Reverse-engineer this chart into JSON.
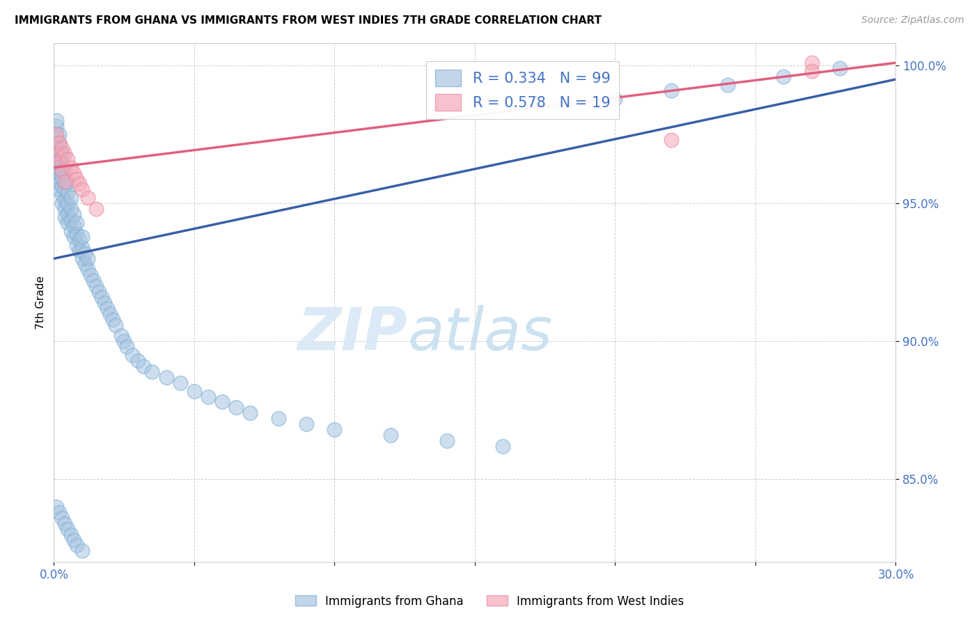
{
  "title": "IMMIGRANTS FROM GHANA VS IMMIGRANTS FROM WEST INDIES 7TH GRADE CORRELATION CHART",
  "source_text": "Source: ZipAtlas.com",
  "ylabel": "7th Grade",
  "xlim": [
    0.0,
    0.3
  ],
  "ylim": [
    0.82,
    1.008
  ],
  "xticks": [
    0.0,
    0.05,
    0.1,
    0.15,
    0.2,
    0.25,
    0.3
  ],
  "xticklabels": [
    "0.0%",
    "",
    "",
    "",
    "",
    "",
    "30.0%"
  ],
  "yticks": [
    0.85,
    0.9,
    0.95,
    1.0
  ],
  "yticklabels": [
    "85.0%",
    "90.0%",
    "95.0%",
    "100.0%"
  ],
  "ghana_color": "#a8c4e0",
  "ghana_edge_color": "#7aafd4",
  "westindies_color": "#f4a8b8",
  "westindies_edge_color": "#e888a0",
  "ghana_line_color": "#3a5fa8",
  "westindies_line_color": "#e06080",
  "ghana_R": 0.334,
  "ghana_N": 99,
  "westindies_R": 0.578,
  "westindies_N": 19,
  "watermark_zip": "ZIP",
  "watermark_atlas": "atlas",
  "background_color": "#ffffff",
  "ghana_line_x0": 0.0,
  "ghana_line_y0": 0.93,
  "ghana_line_x1": 0.3,
  "ghana_line_y1": 0.995,
  "wi_line_x0": 0.0,
  "wi_line_y0": 0.963,
  "wi_line_x1": 0.3,
  "wi_line_y1": 1.001,
  "ghana_x": [
    0.001,
    0.001,
    0.001,
    0.001,
    0.001,
    0.001,
    0.001,
    0.001,
    0.001,
    0.002,
    0.002,
    0.002,
    0.002,
    0.002,
    0.002,
    0.002,
    0.002,
    0.003,
    0.003,
    0.003,
    0.003,
    0.003,
    0.003,
    0.003,
    0.004,
    0.004,
    0.004,
    0.004,
    0.004,
    0.004,
    0.005,
    0.005,
    0.005,
    0.005,
    0.005,
    0.006,
    0.006,
    0.006,
    0.006,
    0.007,
    0.007,
    0.007,
    0.008,
    0.008,
    0.008,
    0.009,
    0.009,
    0.01,
    0.01,
    0.01,
    0.011,
    0.011,
    0.012,
    0.012,
    0.013,
    0.014,
    0.015,
    0.016,
    0.017,
    0.018,
    0.019,
    0.02,
    0.021,
    0.022,
    0.024,
    0.025,
    0.026,
    0.028,
    0.03,
    0.032,
    0.035,
    0.04,
    0.045,
    0.05,
    0.055,
    0.06,
    0.065,
    0.07,
    0.08,
    0.09,
    0.1,
    0.12,
    0.14,
    0.16,
    0.18,
    0.2,
    0.22,
    0.24,
    0.26,
    0.28,
    0.001,
    0.002,
    0.003,
    0.004,
    0.005,
    0.006,
    0.007,
    0.008,
    0.01
  ],
  "ghana_y": [
    0.96,
    0.963,
    0.965,
    0.967,
    0.97,
    0.972,
    0.975,
    0.978,
    0.98,
    0.955,
    0.958,
    0.961,
    0.963,
    0.966,
    0.969,
    0.972,
    0.975,
    0.95,
    0.953,
    0.956,
    0.959,
    0.962,
    0.965,
    0.968,
    0.945,
    0.948,
    0.951,
    0.955,
    0.958,
    0.962,
    0.943,
    0.946,
    0.95,
    0.954,
    0.958,
    0.94,
    0.944,
    0.948,
    0.952,
    0.938,
    0.942,
    0.946,
    0.935,
    0.939,
    0.943,
    0.933,
    0.937,
    0.93,
    0.934,
    0.938,
    0.928,
    0.932,
    0.926,
    0.93,
    0.924,
    0.922,
    0.92,
    0.918,
    0.916,
    0.914,
    0.912,
    0.91,
    0.908,
    0.906,
    0.902,
    0.9,
    0.898,
    0.895,
    0.893,
    0.891,
    0.889,
    0.887,
    0.885,
    0.882,
    0.88,
    0.878,
    0.876,
    0.874,
    0.872,
    0.87,
    0.868,
    0.866,
    0.864,
    0.862,
    0.985,
    0.988,
    0.991,
    0.993,
    0.996,
    0.999,
    0.84,
    0.838,
    0.836,
    0.834,
    0.832,
    0.83,
    0.828,
    0.826,
    0.824
  ],
  "wi_x": [
    0.001,
    0.001,
    0.002,
    0.002,
    0.003,
    0.003,
    0.004,
    0.004,
    0.005,
    0.006,
    0.007,
    0.008,
    0.009,
    0.01,
    0.012,
    0.015,
    0.22,
    0.27,
    0.27
  ],
  "wi_y": [
    0.975,
    0.968,
    0.972,
    0.965,
    0.97,
    0.962,
    0.968,
    0.958,
    0.966,
    0.963,
    0.961,
    0.959,
    0.957,
    0.955,
    0.952,
    0.948,
    0.973,
    1.001,
    0.998
  ]
}
